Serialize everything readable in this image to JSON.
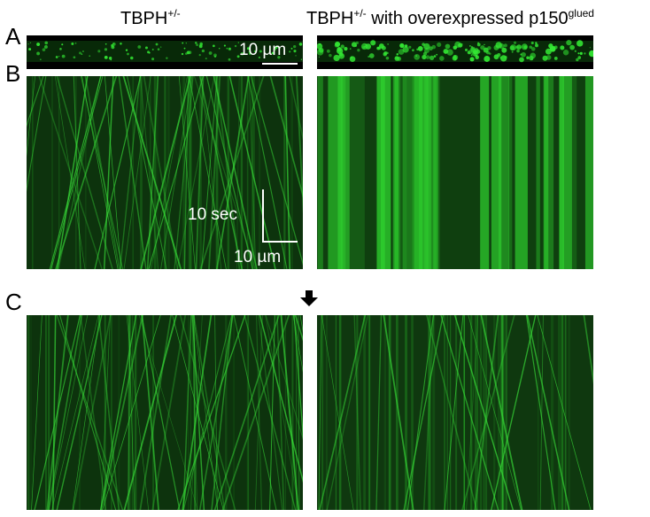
{
  "headers": {
    "left_base": "TBPH",
    "left_sup": "+/-",
    "right_base": "TBPH",
    "right_sup": "+/-",
    "right_middle": " with overexpressed p150",
    "right_sup2": "glued"
  },
  "panel_labels": {
    "a": "A",
    "b": "B",
    "c": "C"
  },
  "scale_bars": {
    "strip_length": "10 µm",
    "kymo_time": "10 sec",
    "kymo_length": "10 µm"
  },
  "colors": {
    "signal": "#22c922",
    "background": "#0a2a0a",
    "strip_bg": "#000000"
  },
  "icons": {
    "arrow": "down-arrow-icon"
  }
}
